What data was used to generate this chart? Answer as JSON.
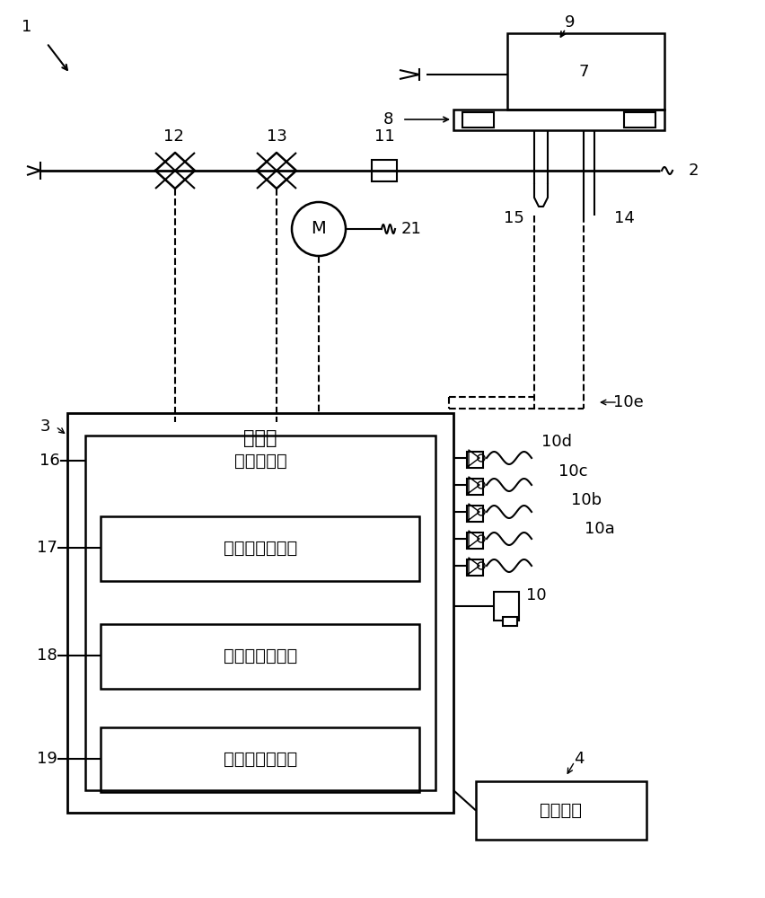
{
  "bg_color": "#ffffff",
  "line_color": "#000000",
  "label_1": "1",
  "label_2": "2",
  "label_3": "3",
  "label_4": "4",
  "label_7": "7",
  "label_8": "8",
  "label_9": "9",
  "label_10": "10",
  "label_10a": "10a",
  "label_10b": "10b",
  "label_10c": "10c",
  "label_10d": "10d",
  "label_10e": "10e",
  "label_11": "11",
  "label_12": "12",
  "label_13": "13",
  "label_14": "14",
  "label_15": "15",
  "label_16": "16",
  "label_17": "17",
  "label_18": "18",
  "label_19": "19",
  "label_21": "21",
  "text_controller": "控制器",
  "text_fire_control": "火力控制部",
  "text_position_display": "位置显示控制部",
  "text_temp_range": "温度范围设定部",
  "text_fire_level": "火力等级选择部",
  "text_operation_panel": "操作面板"
}
